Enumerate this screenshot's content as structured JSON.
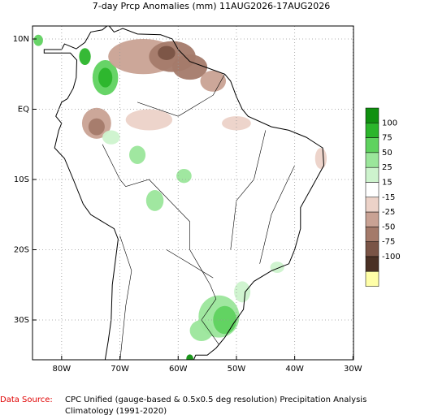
{
  "header": {
    "title": "7-day Prcp Anomalies (mm) 11AUG2026-17AUG2026"
  },
  "map": {
    "lat_labels": [
      "10N",
      "EQ",
      "10S",
      "20S",
      "30S"
    ],
    "lon_labels": [
      "80W",
      "70W",
      "60W",
      "50W",
      "40W",
      "30W"
    ]
  },
  "legend": {
    "labels": [
      100,
      75,
      50,
      25,
      15,
      -15,
      -25,
      -50,
      -75,
      -100
    ],
    "colors": [
      "#109010",
      "#2bb52b",
      "#5fd25f",
      "#9be69b",
      "#cdf3cd",
      "#ffffff",
      "#ecd2c8",
      "#c9a294",
      "#a47a6a",
      "#7a5446",
      "#4a3024",
      "#ffffa8"
    ]
  },
  "footer": {
    "source_label": "Data Source:",
    "source": "CPC Unified (gauge-based & 0.5x0.5 deg resolution) Precipitation Analysis",
    "climatology": "Climatology (1991-2020)"
  }
}
